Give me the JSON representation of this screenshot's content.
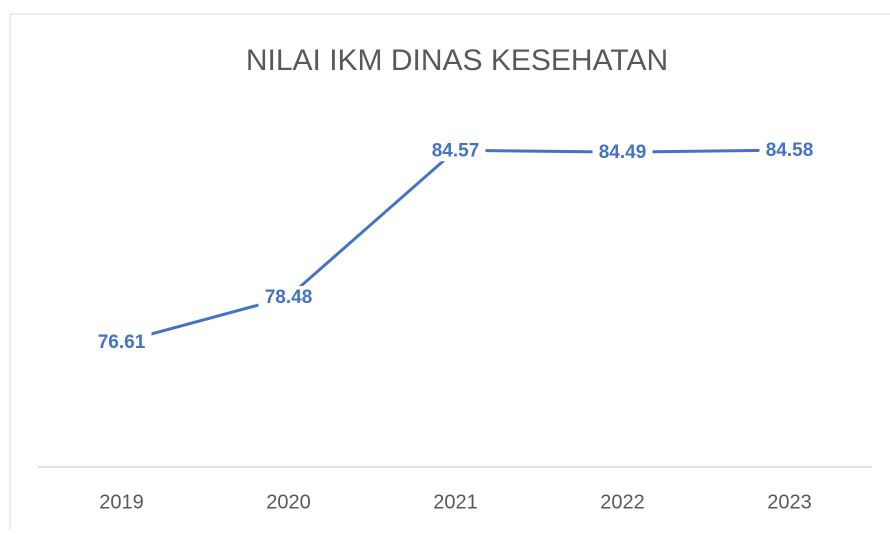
{
  "chart_data": {
    "type": "line",
    "title": "NILAI IKM DINAS KESEHATAN",
    "categories": [
      "2019",
      "2020",
      "2021",
      "2022",
      "2023"
    ],
    "values": [
      76.61,
      78.48,
      84.57,
      84.49,
      84.58
    ],
    "color": "#4472c4"
  }
}
